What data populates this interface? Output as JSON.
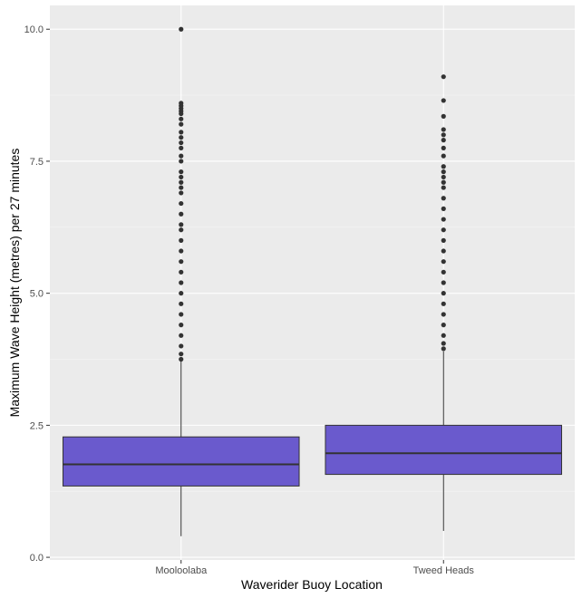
{
  "chart_data": {
    "type": "boxplot",
    "title": "",
    "xlabel": "Waverider Buoy Location",
    "ylabel": "Maximum Wave Height (metres) per 27 minutes",
    "ylim": [
      -0.05,
      10.45
    ],
    "yticks": [
      0.0,
      2.5,
      5.0,
      7.5,
      10.0
    ],
    "ytick_labels": [
      "0.0",
      "2.5",
      "5.0",
      "7.5",
      "10.0"
    ],
    "grid": true,
    "legend": "none",
    "categories": [
      "Mooloolaba",
      "Tweed Heads"
    ],
    "boxes": [
      {
        "category": "Mooloolaba",
        "whisker_low": 0.4,
        "q1": 1.35,
        "median": 1.76,
        "q3": 2.28,
        "whisker_high": 3.73,
        "outliers": [
          3.75,
          3.85,
          4.0,
          4.2,
          4.4,
          4.6,
          4.8,
          5.0,
          5.2,
          5.4,
          5.6,
          5.8,
          6.0,
          6.2,
          6.3,
          6.5,
          6.7,
          6.9,
          7.0,
          7.1,
          7.2,
          7.3,
          7.5,
          7.6,
          7.75,
          7.85,
          7.95,
          8.05,
          8.2,
          8.3,
          8.4,
          8.45,
          8.5,
          8.55,
          8.6,
          10.0
        ]
      },
      {
        "category": "Tweed Heads",
        "whisker_low": 0.5,
        "q1": 1.57,
        "median": 1.97,
        "q3": 2.5,
        "whisker_high": 3.9,
        "outliers": [
          3.95,
          4.05,
          4.2,
          4.4,
          4.6,
          4.8,
          5.0,
          5.2,
          5.4,
          5.6,
          5.8,
          6.0,
          6.2,
          6.4,
          6.6,
          6.8,
          7.0,
          7.1,
          7.2,
          7.3,
          7.4,
          7.6,
          7.75,
          7.9,
          8.0,
          8.1,
          8.35,
          8.65,
          9.1
        ]
      }
    ],
    "colors": {
      "box_fill": "#6a5acd",
      "box_line": "#333333",
      "panel_bg": "#ebebeb",
      "grid_major": "#ffffff",
      "grid_minor": "#f5f5f5"
    }
  }
}
